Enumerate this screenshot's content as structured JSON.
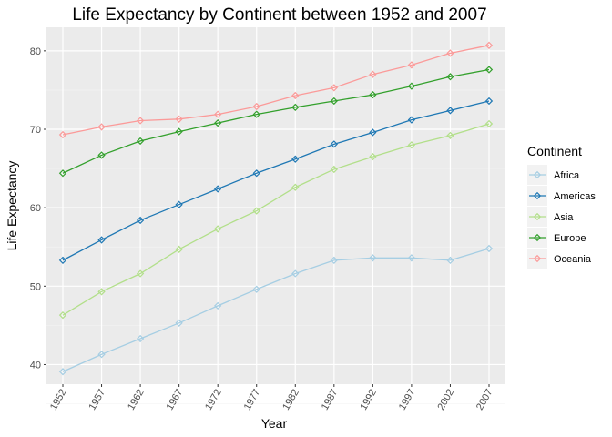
{
  "chart_data": {
    "type": "line",
    "title": "Life Expectancy by Continent between 1952 and 2007",
    "xlabel": "Year",
    "ylabel": "Life Expectancy",
    "x": [
      1952,
      1957,
      1962,
      1967,
      1972,
      1977,
      1982,
      1987,
      1992,
      1997,
      2002,
      2007
    ],
    "x_tick_labels": [
      "1952",
      "1957",
      "1962",
      "1967",
      "1972",
      "1977",
      "1982",
      "1987",
      "1992",
      "1997",
      "2002",
      "2007"
    ],
    "y_ticks": [
      40,
      50,
      60,
      70,
      80
    ],
    "y_tick_labels": [
      "40",
      "50",
      "60",
      "70",
      "80"
    ],
    "ylim": [
      37.5,
      83
    ],
    "grid": true,
    "legend_title": "Continent",
    "legend_position": "right",
    "series": [
      {
        "name": "Africa",
        "color": "#a6cee3",
        "values": [
          39.1,
          41.3,
          43.3,
          45.3,
          47.5,
          49.6,
          51.6,
          53.3,
          53.6,
          53.6,
          53.3,
          54.8
        ]
      },
      {
        "name": "Americas",
        "color": "#1f78b4",
        "values": [
          53.3,
          55.9,
          58.4,
          60.4,
          62.4,
          64.4,
          66.2,
          68.1,
          69.6,
          71.2,
          72.4,
          73.6
        ]
      },
      {
        "name": "Asia",
        "color": "#b2df8a",
        "values": [
          46.3,
          49.3,
          51.6,
          54.7,
          57.3,
          59.6,
          62.6,
          64.9,
          66.5,
          68.0,
          69.2,
          70.7
        ]
      },
      {
        "name": "Europe",
        "color": "#33a02c",
        "values": [
          64.4,
          66.7,
          68.5,
          69.7,
          70.8,
          71.9,
          72.8,
          73.6,
          74.4,
          75.5,
          76.7,
          77.6
        ]
      },
      {
        "name": "Oceania",
        "color": "#fb9a99",
        "values": [
          69.3,
          70.3,
          71.1,
          71.3,
          71.9,
          72.9,
          74.3,
          75.3,
          77.0,
          78.2,
          79.7,
          80.7
        ]
      }
    ]
  }
}
